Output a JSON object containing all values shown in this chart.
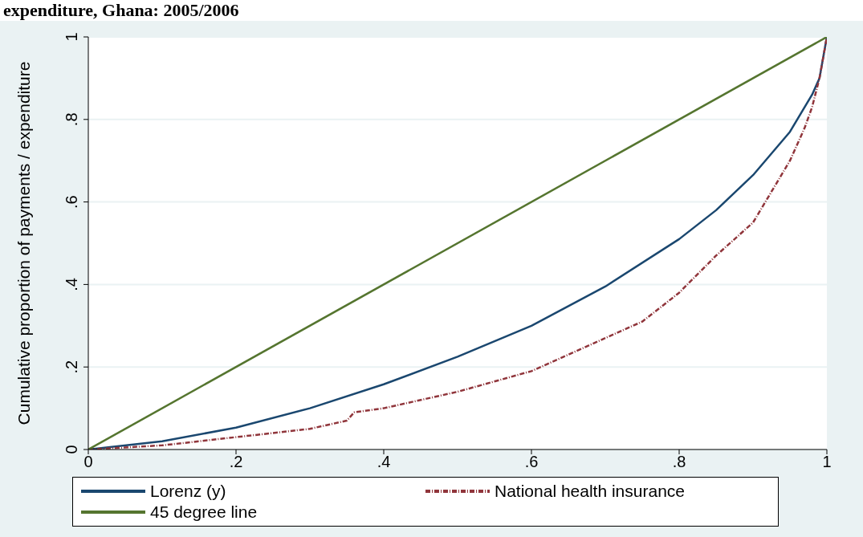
{
  "chart_data": {
    "type": "line",
    "title": "expenditure, Ghana: 2005/2006",
    "ylabel": "Cumulative proportion of payments / expenditure",
    "xlim": [
      0,
      1
    ],
    "xticks": [
      0,
      {
        "value": 0.2,
        "label": ".2"
      },
      {
        "value": 0.4,
        "label": ".4"
      },
      {
        "value": 0.6,
        "label": ".6"
      },
      {
        "value": 0.8,
        "label": ".8"
      },
      1
    ],
    "ylim": [
      0,
      1
    ],
    "yticks": [
      0,
      {
        "value": 0.2,
        "label": ".2"
      },
      {
        "value": 0.4,
        "label": ".4"
      },
      {
        "value": 0.6,
        "label": ".6"
      },
      {
        "value": 0.8,
        "label": ".8"
      },
      1
    ],
    "grid": "y",
    "legend": "bottom",
    "marker": "none",
    "series": [
      {
        "name": "Lorenz (y)",
        "color": "#1a476f",
        "line_style": "solid",
        "x": [
          0,
          0.1,
          0.2,
          0.3,
          0.4,
          0.5,
          0.6,
          0.7,
          0.8,
          0.85,
          0.9,
          0.95,
          0.98,
          0.99,
          1
        ],
        "values": [
          0,
          0.02,
          0.053,
          0.1,
          0.158,
          0.225,
          0.3,
          0.395,
          0.51,
          0.58,
          0.665,
          0.77,
          0.86,
          0.9,
          1
        ]
      },
      {
        "name": "National health insurance",
        "color": "#90353b",
        "line_style": "dashed",
        "x": [
          0,
          0.1,
          0.2,
          0.3,
          0.35,
          0.36,
          0.4,
          0.5,
          0.6,
          0.65,
          0.7,
          0.75,
          0.8,
          0.85,
          0.9,
          0.95,
          0.97,
          0.98,
          0.99,
          1
        ],
        "values": [
          0,
          0.01,
          0.03,
          0.05,
          0.07,
          0.09,
          0.1,
          0.14,
          0.19,
          0.23,
          0.27,
          0.31,
          0.38,
          0.47,
          0.55,
          0.7,
          0.78,
          0.83,
          0.9,
          1
        ]
      },
      {
        "name": "45 degree line",
        "color": "#55752f",
        "line_style": "solid",
        "x": [
          0,
          1
        ],
        "values": [
          0,
          1
        ]
      }
    ]
  }
}
